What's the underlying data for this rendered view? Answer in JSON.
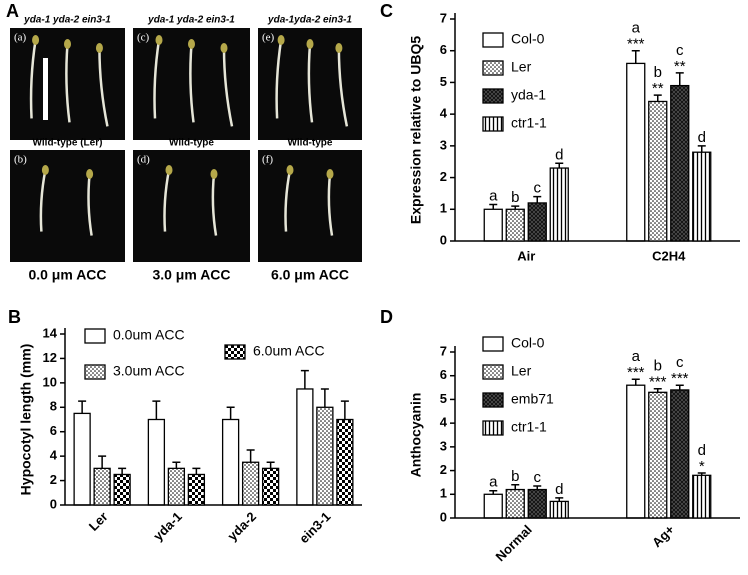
{
  "panel_a": {
    "label": "A",
    "columns": [
      {
        "header": "yda-1   yda-2   ein3-1",
        "top_tag": "(a)",
        "caption": "Wild-type (Ler)",
        "bottom_tag": "(b)",
        "treatment": "0.0 μm ACC"
      },
      {
        "header": "yda-1 yda-2  ein3-1",
        "top_tag": "(c)",
        "caption": "Wild-type",
        "bottom_tag": "(d)",
        "treatment": "3.0 μm ACC"
      },
      {
        "header": "yda-1yda-2 ein3-1",
        "top_tag": "(e)",
        "caption": "Wild-type",
        "bottom_tag": "(f)",
        "treatment": "6.0 μm ACC"
      }
    ]
  },
  "chart_data": [
    {
      "type": "bar",
      "panel": "B",
      "ylabel": "Hypocotyl length (mm)",
      "categories": [
        "Ler",
        "yda-1",
        "yda-2",
        "ein3-1"
      ],
      "xtick_rotation": 45,
      "ylim": [
        0,
        14
      ],
      "yticks": [
        0,
        2,
        4,
        6,
        8,
        10,
        12,
        14
      ],
      "series": [
        {
          "name": "0.0um ACC",
          "pattern": "white",
          "values": [
            7.5,
            7,
            7,
            9.5
          ],
          "errors": [
            1,
            1.5,
            1,
            1.5
          ]
        },
        {
          "name": "3.0um ACC",
          "pattern": "dots",
          "values": [
            3,
            3,
            3.5,
            8
          ],
          "errors": [
            1,
            0.5,
            1,
            1.5
          ]
        },
        {
          "name": "6.0um ACC",
          "pattern": "checker",
          "values": [
            2.5,
            2.5,
            3,
            7
          ],
          "errors": [
            0.5,
            0.5,
            0.5,
            1.5
          ]
        }
      ]
    },
    {
      "type": "bar",
      "panel": "C",
      "ylabel": "Expression relative to UBQ5",
      "categories": [
        "Air",
        "C2H4"
      ],
      "xtick_rotation": 0,
      "ylim": [
        0,
        7
      ],
      "yticks": [
        0,
        1,
        2,
        3,
        4,
        5,
        6,
        7
      ],
      "series": [
        {
          "name": "Col-0",
          "pattern": "white",
          "values": [
            1.0,
            5.6
          ],
          "errors": [
            0.15,
            0.4
          ],
          "letters": [
            "a",
            "a"
          ],
          "stars": [
            null,
            "***"
          ]
        },
        {
          "name": "Ler",
          "pattern": "dots",
          "values": [
            1.0,
            4.4
          ],
          "errors": [
            0.1,
            0.2
          ],
          "letters": [
            "b",
            "b"
          ],
          "stars": [
            null,
            "**"
          ]
        },
        {
          "name": "yda-1",
          "pattern": "cross",
          "values": [
            1.2,
            4.9
          ],
          "errors": [
            0.2,
            0.4
          ],
          "letters": [
            "c",
            "c"
          ],
          "stars": [
            null,
            "**"
          ]
        },
        {
          "name": "ctr1-1",
          "pattern": "vlines",
          "values": [
            2.3,
            2.8
          ],
          "errors": [
            0.15,
            0.2
          ],
          "letters": [
            "d",
            "d"
          ],
          "stars": [
            null,
            null
          ]
        }
      ]
    },
    {
      "type": "bar",
      "panel": "D",
      "ylabel": "Anthocyanin",
      "categories": [
        "Normal",
        "Ag+"
      ],
      "xtick_rotation": 45,
      "ylim": [
        0,
        7
      ],
      "yticks": [
        0,
        1,
        2,
        3,
        4,
        5,
        6,
        7
      ],
      "series": [
        {
          "name": "Col-0",
          "pattern": "white",
          "values": [
            1.0,
            5.6
          ],
          "errors": [
            0.15,
            0.25
          ],
          "letters": [
            "a",
            "a"
          ],
          "stars": [
            null,
            "***"
          ]
        },
        {
          "name": "Ler",
          "pattern": "dots",
          "values": [
            1.2,
            5.3
          ],
          "errors": [
            0.2,
            0.15
          ],
          "letters": [
            "b",
            "b"
          ],
          "stars": [
            null,
            "***"
          ]
        },
        {
          "name": "emb71",
          "pattern": "cross",
          "values": [
            1.2,
            5.4
          ],
          "errors": [
            0.15,
            0.2
          ],
          "letters": [
            "c",
            "c"
          ],
          "stars": [
            null,
            "***"
          ]
        },
        {
          "name": "ctr1-1",
          "pattern": "vlines",
          "values": [
            0.7,
            1.8
          ],
          "errors": [
            0.15,
            0.1
          ],
          "letters": [
            "d",
            "d"
          ],
          "stars": [
            null,
            "*"
          ]
        }
      ]
    }
  ]
}
